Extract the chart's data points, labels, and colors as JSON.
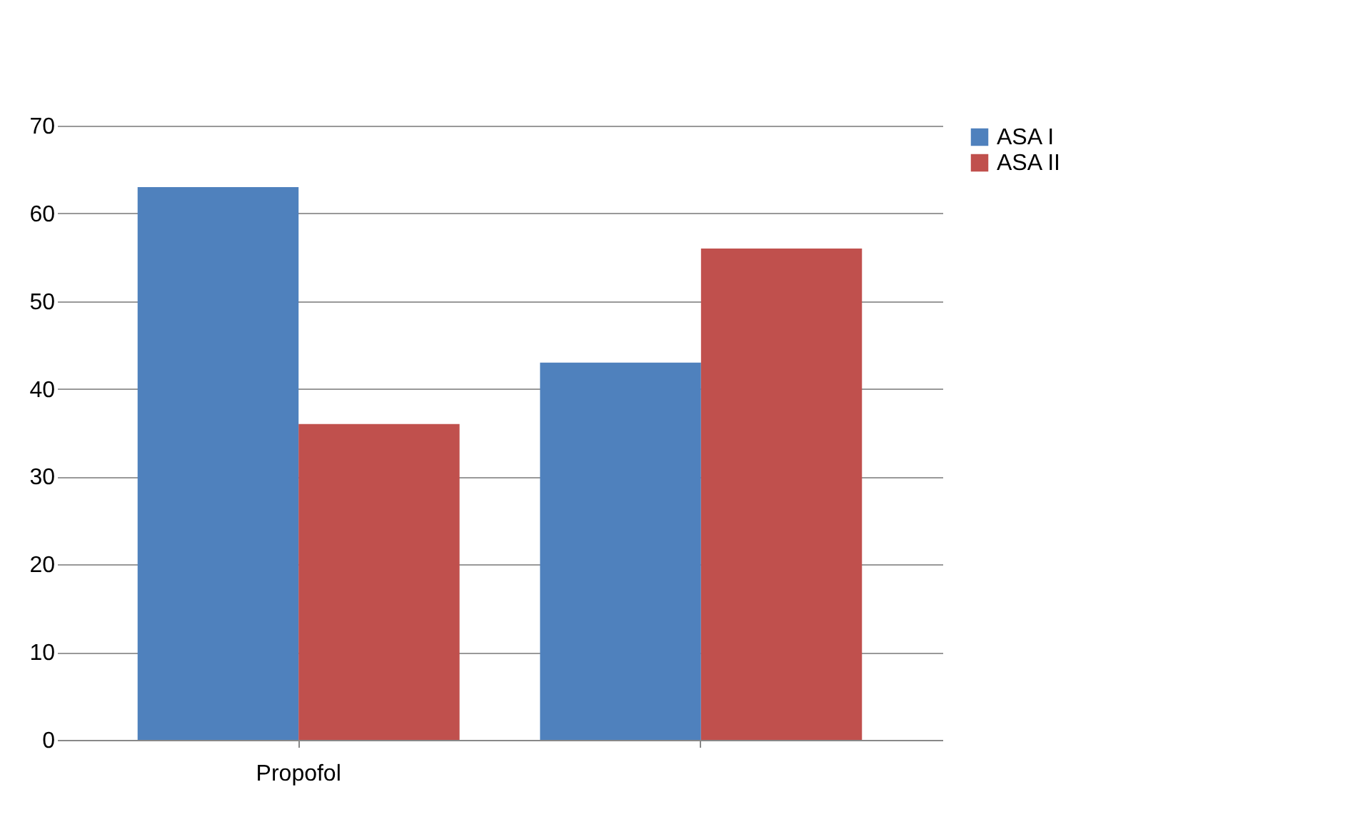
{
  "chart_data": {
    "type": "bar",
    "categories": [
      "Propofol",
      null
    ],
    "series": [
      {
        "name": "ASA I",
        "color": "#4f81bd",
        "values": [
          63,
          43
        ]
      },
      {
        "name": "ASA II",
        "color": "#c0504d",
        "values": [
          36,
          56
        ]
      }
    ],
    "ylim": [
      0,
      70
    ],
    "yticks": [
      0,
      10,
      20,
      30,
      40,
      50,
      60,
      70
    ],
    "grid": "y",
    "legend": "right"
  }
}
